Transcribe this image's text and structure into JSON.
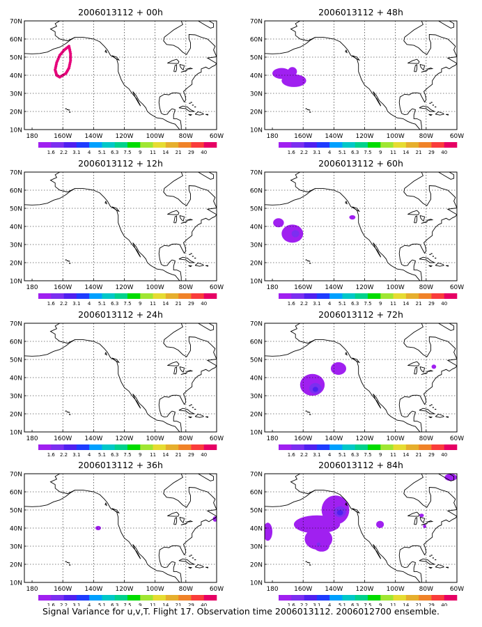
{
  "caption": "Signal Variance for u,v,T. Flight 17. Observation time 2006013112. 2006012700 ensemble.",
  "map": {
    "lon_labels": [
      "180",
      "160W",
      "140W",
      "120W",
      "100W",
      "80W",
      "60W"
    ],
    "lat_labels": [
      "10N",
      "20N",
      "30N",
      "40N",
      "50N",
      "60N",
      "70N"
    ],
    "lon_range": [
      -185,
      -60
    ],
    "lat_range": [
      10,
      70
    ],
    "grid": true,
    "coastline_color": "#000000",
    "grid_color": "#000000"
  },
  "colorbar": {
    "labels": [
      "1.6",
      "2.2",
      "3.1",
      "4",
      "5.1",
      "6.3",
      "7.5",
      "9",
      "11",
      "14",
      "21",
      "29",
      "40"
    ],
    "colors": [
      "#a020f0",
      "#7b2ff0",
      "#5020f0",
      "#1e3cff",
      "#00a0ff",
      "#00c8c8",
      "#00d28c",
      "#00dc00",
      "#a0e632",
      "#e6dc32",
      "#e6af2d",
      "#f08228",
      "#fa3c3c",
      "#e60064"
    ]
  },
  "chart_data": [
    {
      "type": "heatmap",
      "title": "2006013112 + 00h",
      "features": [
        {
          "kind": "dotted-loop",
          "color": "#e6007a",
          "points": [
            [
              -156,
              56
            ],
            [
              -155,
              52
            ],
            [
              -155,
              48
            ],
            [
              -156,
              44
            ],
            [
              -158,
              41
            ],
            [
              -162,
              39
            ],
            [
              -164,
              40
            ],
            [
              -165,
              43
            ],
            [
              -164,
              47
            ],
            [
              -162,
              51
            ],
            [
              -159,
              54
            ],
            [
              -156,
              56
            ]
          ]
        }
      ]
    },
    {
      "type": "heatmap",
      "title": "2006013112 + 48h",
      "features": [
        {
          "kind": "blob",
          "color": "#a020f0",
          "lon": -166,
          "lat": 37,
          "rlon": 8,
          "rlat": 3.5
        },
        {
          "kind": "blob",
          "color": "#a020f0",
          "lon": -174,
          "lat": 41,
          "rlon": 6,
          "rlat": 3
        },
        {
          "kind": "blob",
          "color": "#a020f0",
          "lon": -167,
          "lat": 42,
          "rlon": 3,
          "rlat": 2.5
        }
      ]
    },
    {
      "type": "heatmap",
      "title": "2006013112 + 12h",
      "features": []
    },
    {
      "type": "heatmap",
      "title": "2006013112 + 60h",
      "features": [
        {
          "kind": "blob",
          "color": "#a020f0",
          "lon": -167,
          "lat": 36,
          "rlon": 7,
          "rlat": 5
        },
        {
          "kind": "blob",
          "color": "#7b2ff0",
          "lon": -165,
          "lat": 36,
          "rlon": 2.5,
          "rlat": 2
        },
        {
          "kind": "blob",
          "color": "#a020f0",
          "lon": -176,
          "lat": 42,
          "rlon": 3.5,
          "rlat": 2.5
        },
        {
          "kind": "blob",
          "color": "#a020f0",
          "lon": -128,
          "lat": 45,
          "rlon": 2,
          "rlat": 1.2
        }
      ]
    },
    {
      "type": "heatmap",
      "title": "2006013112 + 24h",
      "features": []
    },
    {
      "type": "heatmap",
      "title": "2006013112 + 72h",
      "features": [
        {
          "kind": "blob",
          "color": "#a020f0",
          "lon": -154,
          "lat": 36,
          "rlon": 8,
          "rlat": 6
        },
        {
          "kind": "blob",
          "color": "#7b2ff0",
          "lon": -152,
          "lat": 34,
          "rlon": 4,
          "rlat": 3
        },
        {
          "kind": "blob",
          "color": "#5020f0",
          "lon": -152,
          "lat": 33.5,
          "rlon": 1.8,
          "rlat": 1.4
        },
        {
          "kind": "blob",
          "color": "#a020f0",
          "lon": -137,
          "lat": 45,
          "rlon": 5,
          "rlat": 3.5
        },
        {
          "kind": "blob",
          "color": "#a020f0",
          "lon": -75,
          "lat": 46,
          "rlon": 1.5,
          "rlat": 1.2
        }
      ]
    },
    {
      "type": "heatmap",
      "title": "2006013112 + 36h",
      "features": [
        {
          "kind": "blob",
          "color": "#a020f0",
          "lon": -137,
          "lat": 40,
          "rlon": 1.8,
          "rlat": 1.2
        },
        {
          "kind": "blob",
          "color": "#a020f0",
          "lon": -61,
          "lat": 45,
          "rlon": 1.5,
          "rlat": 1.5
        }
      ]
    },
    {
      "type": "heatmap",
      "title": "2006013112 + 84h",
      "features": [
        {
          "kind": "blob",
          "color": "#a020f0",
          "lon": -151,
          "lat": 42,
          "rlon": 15,
          "rlat": 5
        },
        {
          "kind": "blob",
          "color": "#a020f0",
          "lon": -150,
          "lat": 34,
          "rlon": 9,
          "rlat": 6
        },
        {
          "kind": "blob",
          "color": "#a020f0",
          "lon": -139,
          "lat": 50,
          "rlon": 9,
          "rlat": 8
        },
        {
          "kind": "blob",
          "color": "#a020f0",
          "lon": -148,
          "lat": 30,
          "rlon": 5,
          "rlat": 3
        },
        {
          "kind": "blob",
          "color": "#7b2ff0",
          "lon": -136,
          "lat": 49,
          "rlon": 4,
          "rlat": 3
        },
        {
          "kind": "blob",
          "color": "#5020f0",
          "lon": -136,
          "lat": 48.5,
          "rlon": 2,
          "rlat": 1.5
        },
        {
          "kind": "blob",
          "color": "#7b2ff0",
          "lon": -150,
          "lat": 31,
          "rlon": 1.2,
          "rlat": 1
        },
        {
          "kind": "blob",
          "color": "#a020f0",
          "lon": -183,
          "lat": 38,
          "rlon": 3,
          "rlat": 5
        },
        {
          "kind": "blob",
          "color": "#a020f0",
          "lon": -110,
          "lat": 42,
          "rlon": 2.5,
          "rlat": 2
        },
        {
          "kind": "blob",
          "color": "#a020f0",
          "lon": -64,
          "lat": 68,
          "rlon": 4,
          "rlat": 2
        },
        {
          "kind": "blob",
          "color": "#a020f0",
          "lon": -83,
          "lat": 47,
          "rlon": 1.5,
          "rlat": 1
        },
        {
          "kind": "blob",
          "color": "#a020f0",
          "lon": -81,
          "lat": 41,
          "rlon": 1,
          "rlat": 1
        }
      ]
    }
  ]
}
